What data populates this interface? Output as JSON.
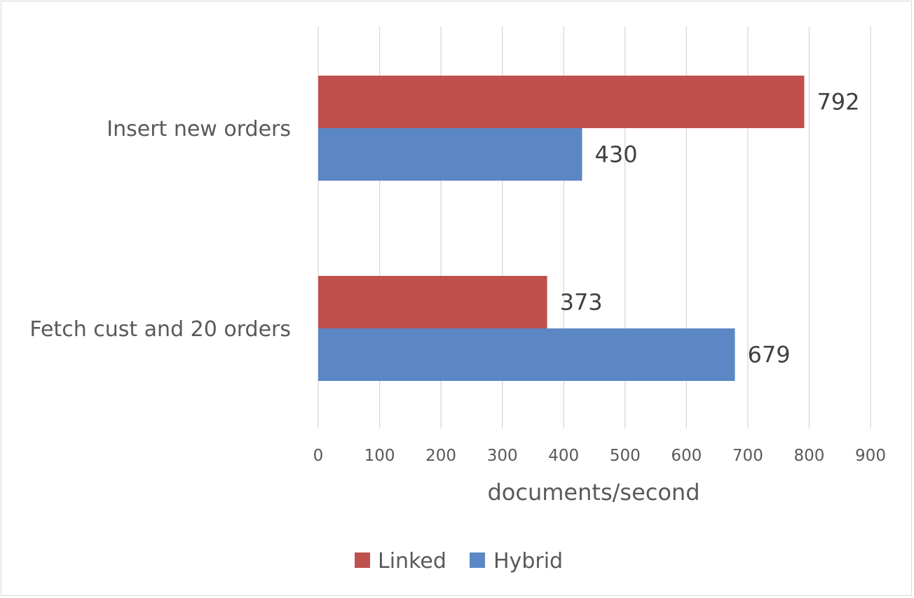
{
  "chart_data": {
    "type": "bar",
    "orientation": "horizontal",
    "categories": [
      "Insert new orders",
      "Fetch cust and 20 orders"
    ],
    "series": [
      {
        "name": "Linked",
        "color": "#c0504d",
        "values": [
          792,
          373
        ]
      },
      {
        "name": "Hybrid",
        "color": "#5b87c5",
        "values": [
          430,
          679
        ]
      }
    ],
    "xlabel": "documents/second",
    "xlim": [
      0,
      900
    ],
    "xticks": [
      0,
      100,
      200,
      300,
      400,
      500,
      600,
      700,
      800,
      900
    ],
    "grid": true,
    "legend_position": "bottom",
    "data_labels": true
  }
}
